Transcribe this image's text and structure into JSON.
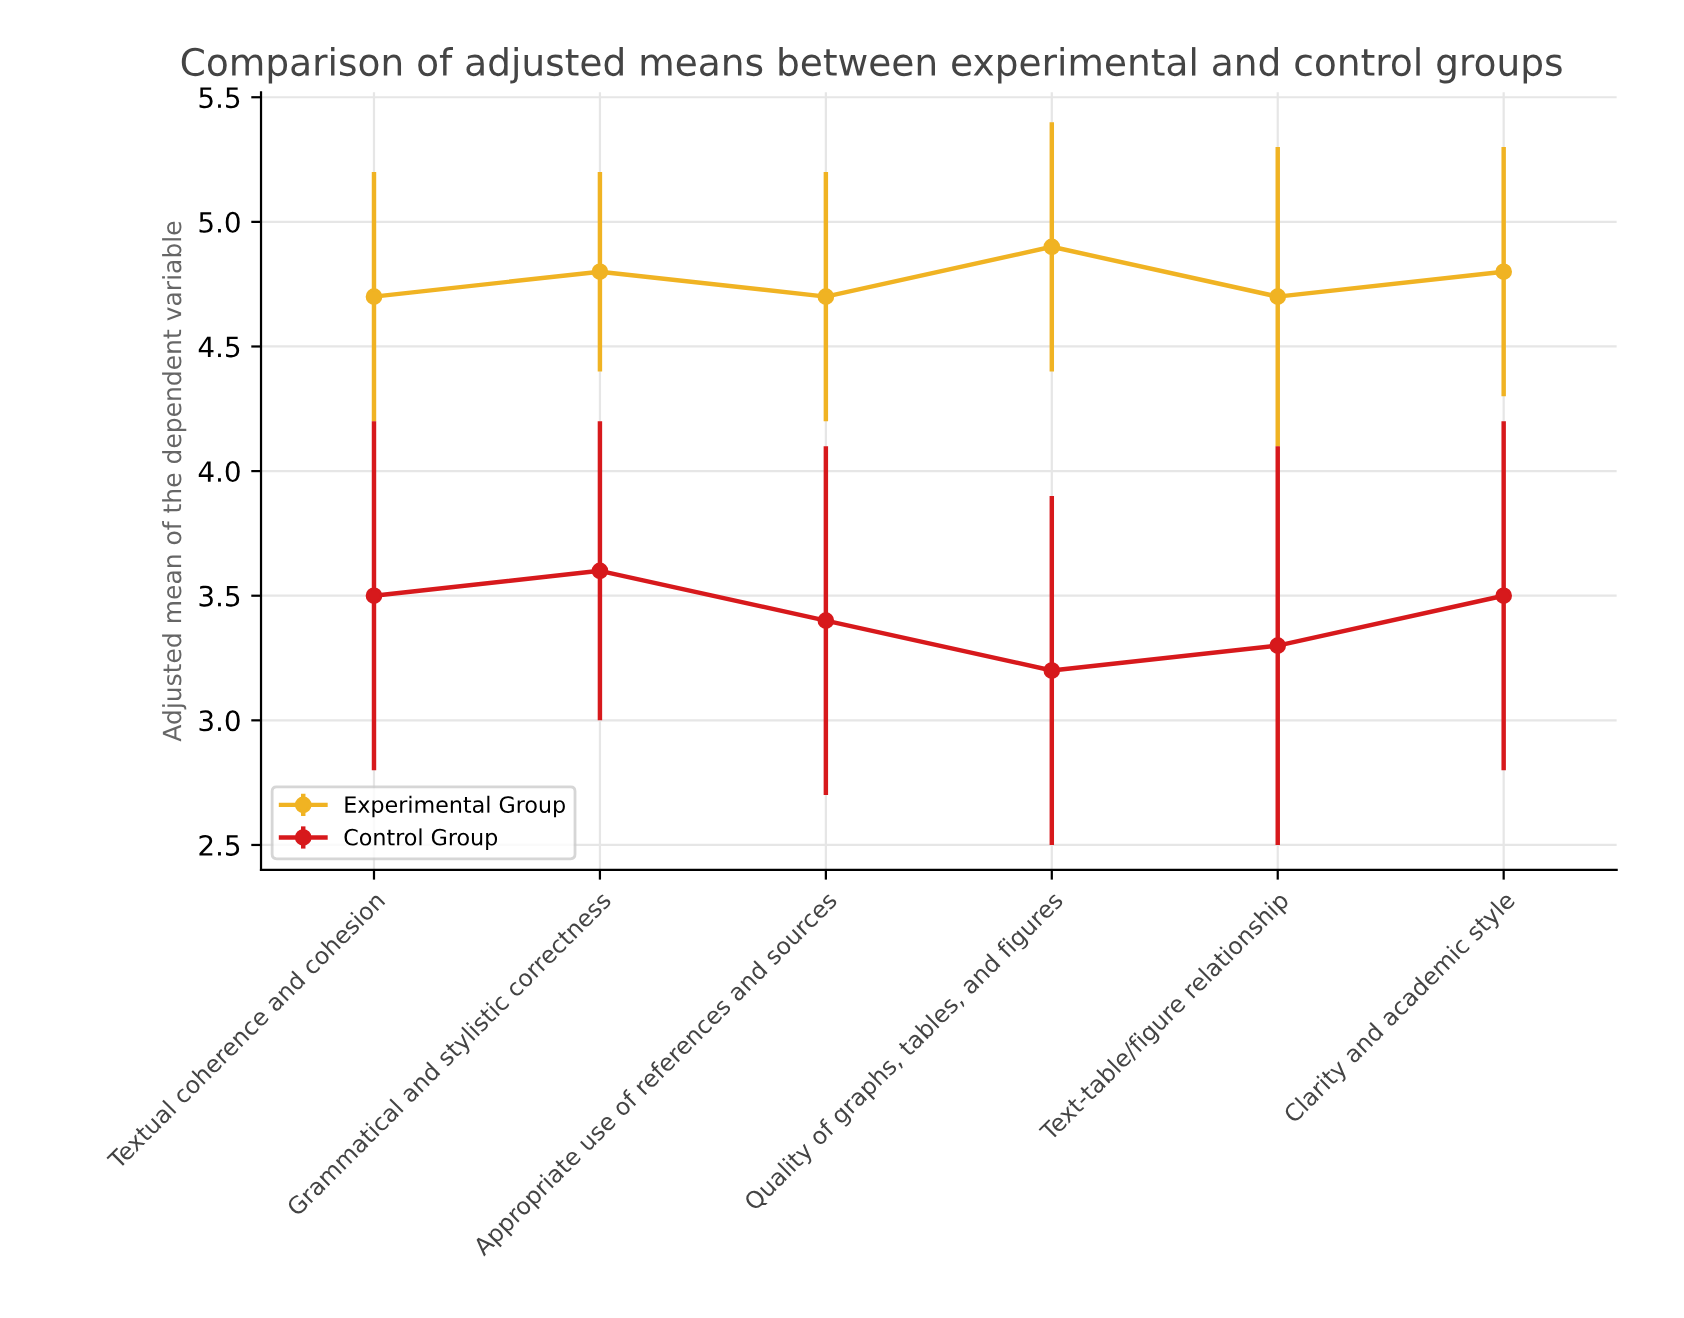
{
  "chart_data": {
    "type": "line",
    "title": "Comparison of adjusted means between experimental and control groups",
    "ylabel": "Adjusted mean of the dependent variable",
    "categories": [
      "Textual coherence and cohesion",
      "Grammatical and stylistic correctness",
      "Appropriate use of references and sources",
      "Quality of graphs, tables, and figures",
      "Text-table/figure relationship",
      "Clarity and academic style"
    ],
    "series": [
      {
        "name": "Experimental Group",
        "color": "#f0b323",
        "values": [
          4.7,
          4.8,
          4.7,
          4.9,
          4.7,
          4.8
        ],
        "errors": [
          0.5,
          0.4,
          0.5,
          0.5,
          0.6,
          0.5
        ]
      },
      {
        "name": "Control Group",
        "color": "#d7191c",
        "values": [
          3.5,
          3.6,
          3.4,
          3.2,
          3.3,
          3.5
        ],
        "errors": [
          0.7,
          0.6,
          0.7,
          0.7,
          0.8,
          0.7
        ]
      }
    ],
    "ylim": [
      2.4,
      5.52
    ],
    "yticks": [
      2.5,
      {
        "value": 3,
        "label": "3.0"
      },
      3.5,
      {
        "value": 4,
        "label": "4.0"
      },
      4.5,
      {
        "value": 5,
        "label": "5.0"
      },
      5.5
    ],
    "grid": true,
    "legend": "bottom left",
    "marker": "circle",
    "line_style": "solid"
  }
}
